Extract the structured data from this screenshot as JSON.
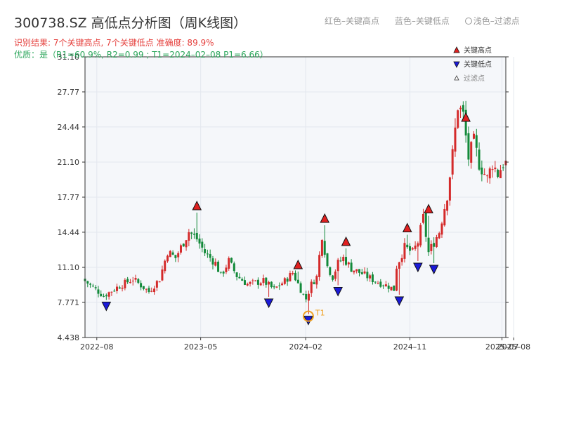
{
  "header": {
    "title": "300738.SZ 高低点分析图（周K线图）",
    "legend_red": "红色–关键高点",
    "legend_blue": "蓝色–关键低点",
    "legend_light": "浅色–过滤点",
    "result": "识别结果: 7个关键高点, 7个关键低点  准确度: 89.9%",
    "quality": "优质：是（R1=60.9%, R2=0.99 ; T1=2024–02–08 P1=6.66）"
  },
  "colors": {
    "up": "#d42a2a",
    "down": "#138a3a",
    "high_marker": "#e02020",
    "low_marker": "#1a1ad8",
    "t1_ring": "#f0a020",
    "plot_bg": "#f5f7fa",
    "grid": "#e3e7ee"
  },
  "chart_data": {
    "type": "candlestick",
    "interval": "weekly",
    "symbol": "300738.SZ",
    "x_range": [
      "2022-07-01",
      "2025-07-11"
    ],
    "ylim": [
      4.438,
      31.1
    ],
    "y_ticks": [
      "4.438",
      "7.771",
      "11.10",
      "14.44",
      "17.77",
      "21.10",
      "24.44",
      "27.77",
      "31.10"
    ],
    "x_ticks": [
      {
        "date": "2022-08-01",
        "label": "2022–08"
      },
      {
        "date": "2023-05-01",
        "label": "2023–05"
      },
      {
        "date": "2024-02-01",
        "label": "2024–02"
      },
      {
        "date": "2024-11-01",
        "label": "2024–11"
      },
      {
        "date": "2025-07-01",
        "label": "2025–07"
      },
      {
        "date": "2025-08-01",
        "label": "2025–08"
      }
    ],
    "legend": {
      "position": "top-right",
      "entries": [
        {
          "label": "关键高点",
          "marker": "high"
        },
        {
          "label": "关键低点",
          "marker": "low"
        },
        {
          "label": "过滤点",
          "marker": "filtered"
        }
      ]
    },
    "path": [
      [
        "2022-07-01",
        10.0
      ],
      [
        "2022-07-22",
        9.4
      ],
      [
        "2022-08-26",
        8.4
      ],
      [
        "2022-09-30",
        9.2
      ],
      [
        "2022-11-11",
        10.0
      ],
      [
        "2022-12-23",
        8.8
      ],
      [
        "2023-01-20",
        10.0
      ],
      [
        "2023-02-10",
        12.6
      ],
      [
        "2023-03-03",
        12.0
      ],
      [
        "2023-04-07",
        14.5
      ],
      [
        "2023-04-28",
        13.8
      ],
      [
        "2023-05-19",
        12.5
      ],
      [
        "2023-06-16",
        11.5
      ],
      [
        "2023-06-30",
        10.3
      ],
      [
        "2023-07-21",
        11.7
      ],
      [
        "2023-08-11",
        10.3
      ],
      [
        "2023-09-08",
        9.5
      ],
      [
        "2023-10-20",
        9.8
      ],
      [
        "2023-11-17",
        9.0
      ],
      [
        "2023-12-15",
        9.8
      ],
      [
        "2024-01-05",
        10.6
      ],
      [
        "2024-01-26",
        9.0
      ],
      [
        "2024-02-08",
        8.0
      ],
      [
        "2024-02-23",
        9.5
      ],
      [
        "2024-03-08",
        10.2
      ],
      [
        "2024-03-22",
        14.2
      ],
      [
        "2024-04-05",
        11.2
      ],
      [
        "2024-04-19",
        10.2
      ],
      [
        "2024-05-03",
        11.5
      ],
      [
        "2024-05-17",
        12.0
      ],
      [
        "2024-06-07",
        11.0
      ],
      [
        "2024-07-05",
        10.5
      ],
      [
        "2024-08-09",
        9.8
      ],
      [
        "2024-09-13",
        9.3
      ],
      [
        "2024-09-27",
        9.0
      ],
      [
        "2024-10-04",
        11.2
      ],
      [
        "2024-10-25",
        13.0
      ],
      [
        "2024-11-15",
        12.5
      ],
      [
        "2024-11-29",
        13.5
      ],
      [
        "2024-12-13",
        15.8
      ],
      [
        "2024-12-27",
        12.5
      ],
      [
        "2025-01-24",
        14.5
      ],
      [
        "2025-02-14",
        18.0
      ],
      [
        "2025-02-28",
        21.8
      ],
      [
        "2025-03-14",
        26.5
      ],
      [
        "2025-03-28",
        25.5
      ],
      [
        "2025-04-11",
        21.5
      ],
      [
        "2025-04-25",
        23.0
      ],
      [
        "2025-05-09",
        21.0
      ],
      [
        "2025-05-30",
        19.5
      ],
      [
        "2025-06-13",
        21.0
      ],
      [
        "2025-06-27",
        20.0
      ],
      [
        "2025-07-11",
        21.0
      ]
    ],
    "key_points": [
      {
        "date": "2022-08-26",
        "type": "low",
        "value": 8.0
      },
      {
        "date": "2023-04-21",
        "type": "high",
        "value": 16.3
      },
      {
        "date": "2023-10-27",
        "type": "low",
        "value": 8.3
      },
      {
        "date": "2024-01-12",
        "type": "high",
        "value": 10.7
      },
      {
        "date": "2024-02-08",
        "type": "low",
        "value": 6.66,
        "label": "T1"
      },
      {
        "date": "2024-03-22",
        "type": "high",
        "value": 15.1
      },
      {
        "date": "2024-04-26",
        "type": "low",
        "value": 9.4
      },
      {
        "date": "2024-05-17",
        "type": "high",
        "value": 12.9
      },
      {
        "date": "2024-10-04",
        "type": "low",
        "value": 8.5
      },
      {
        "date": "2024-10-25",
        "type": "high",
        "value": 14.2
      },
      {
        "date": "2024-11-22",
        "type": "low",
        "value": 11.7
      },
      {
        "date": "2024-12-20",
        "type": "high",
        "value": 16.0
      },
      {
        "date": "2025-01-03",
        "type": "low",
        "value": 11.5
      },
      {
        "date": "2025-03-28",
        "type": "high",
        "value": 24.7
      }
    ]
  }
}
